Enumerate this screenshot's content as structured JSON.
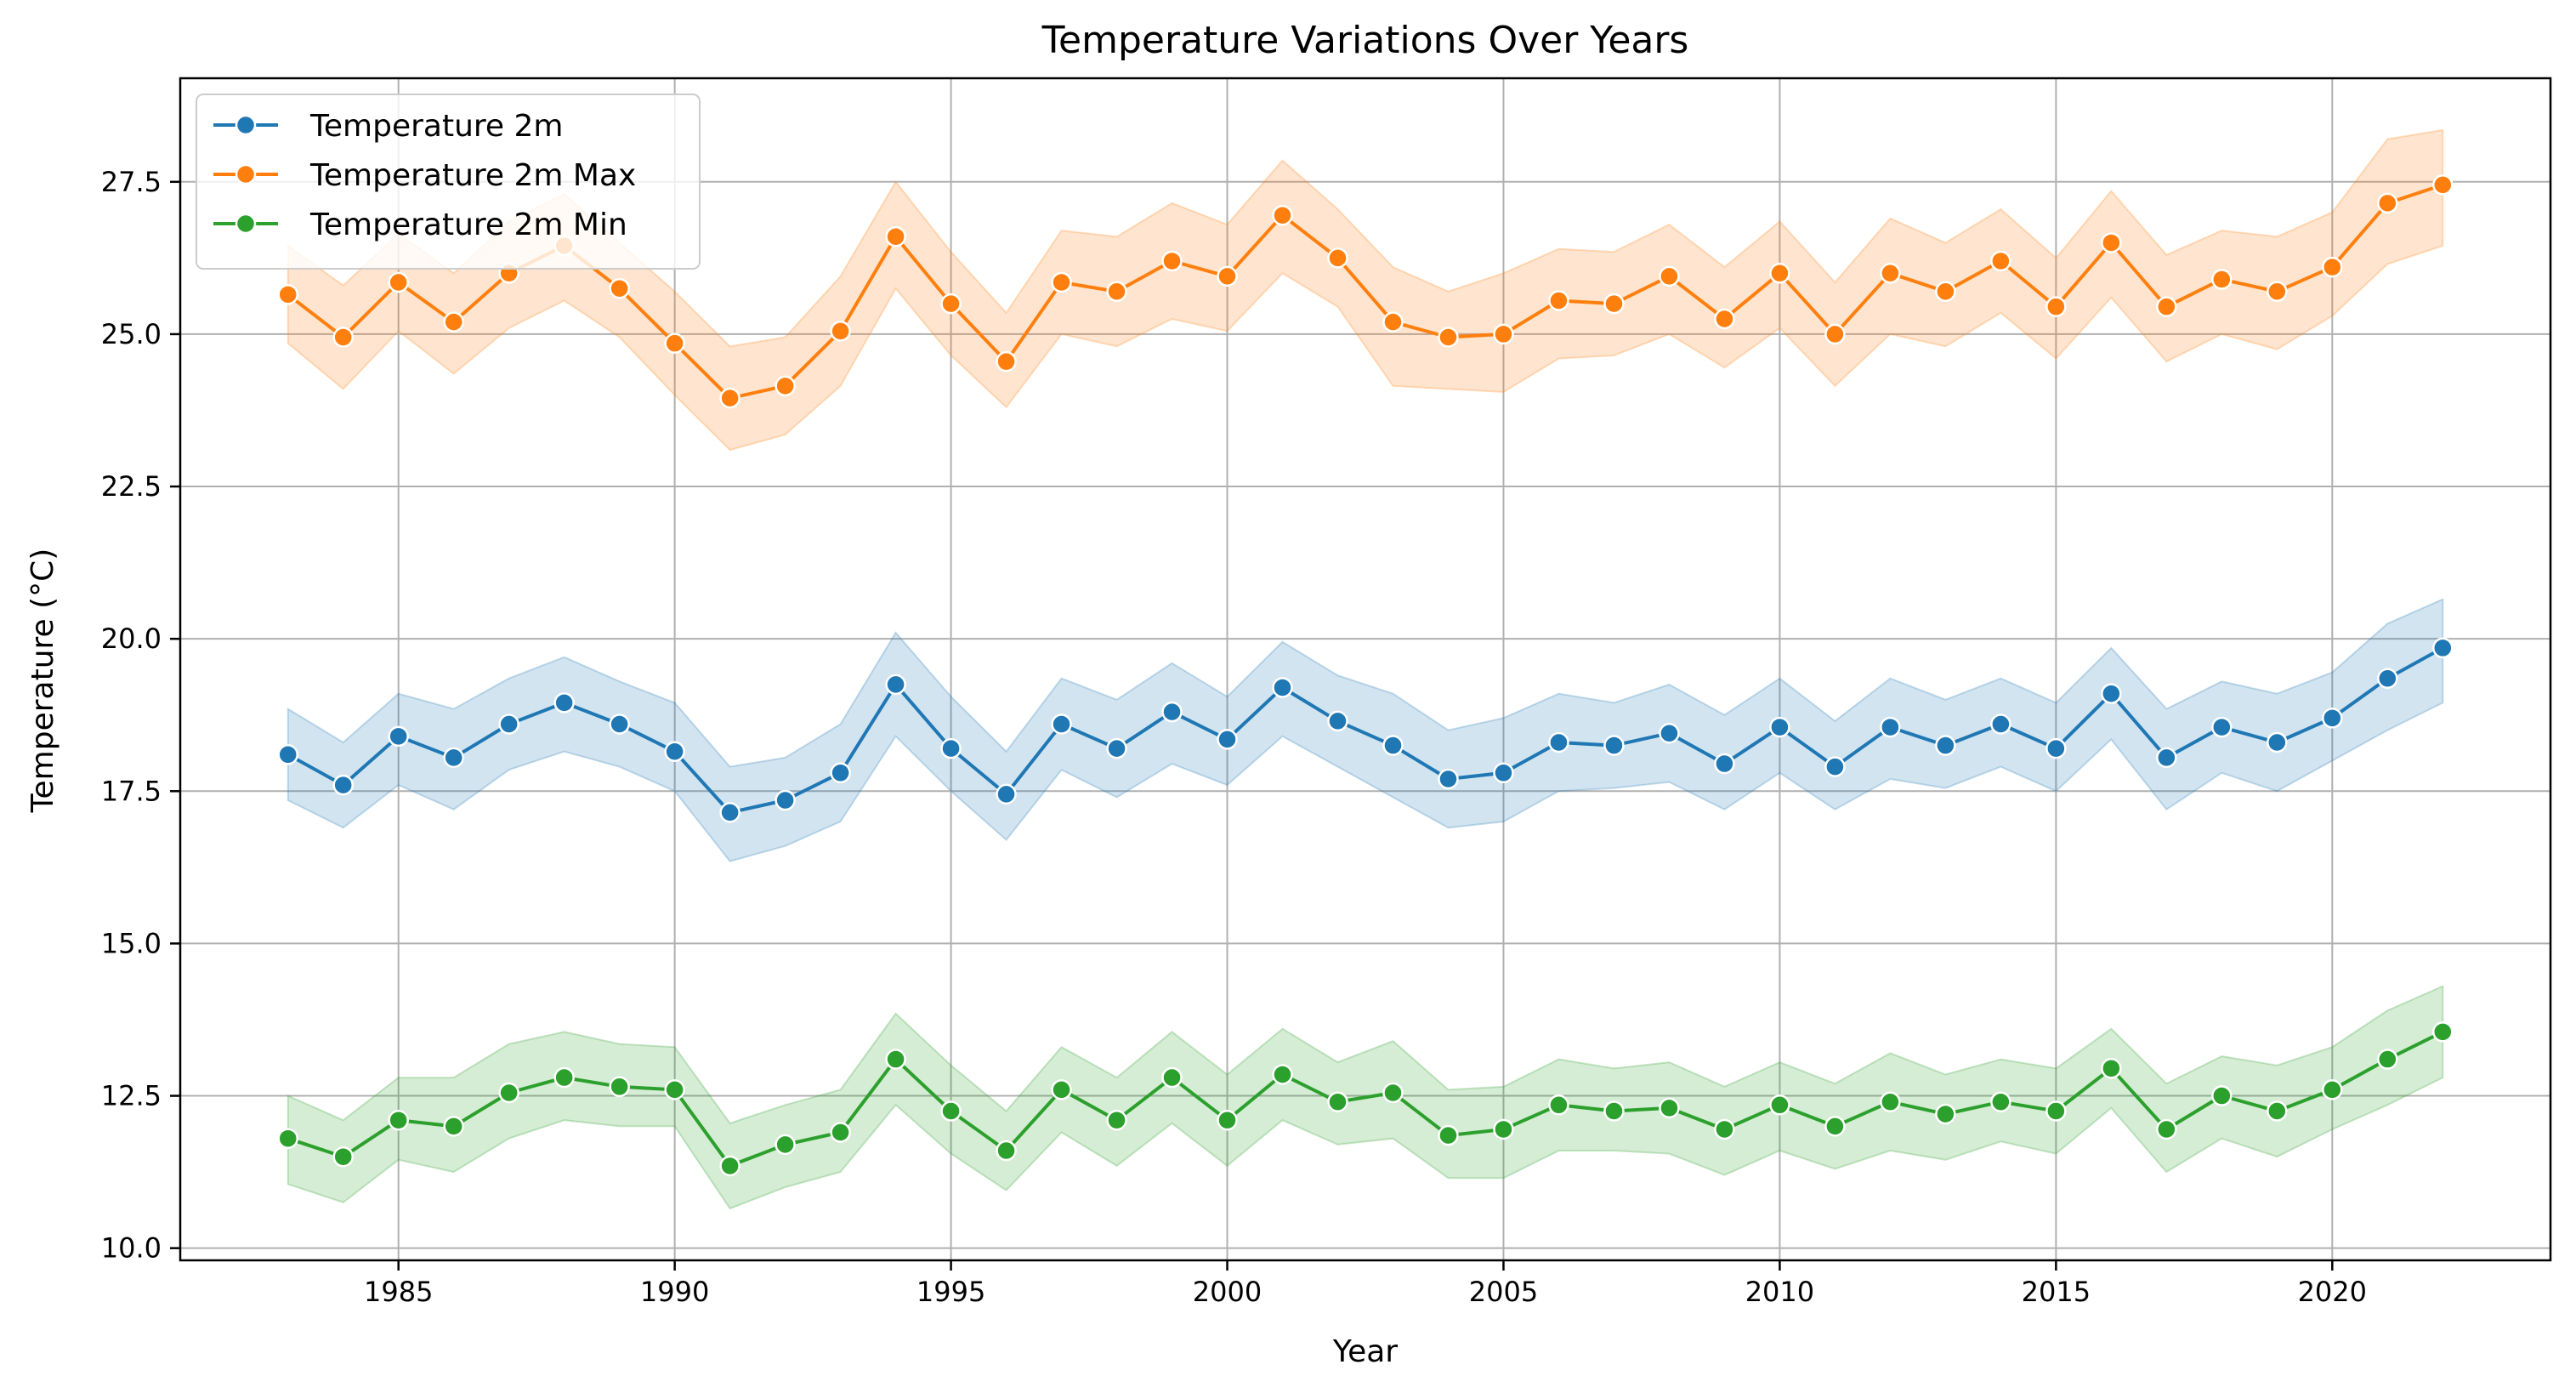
{
  "chart_data": {
    "type": "line",
    "title": "Temperature Variations Over Years",
    "xlabel": "Year",
    "ylabel": "Temperature (°C)",
    "xlim": [
      1981.05,
      2023.95
    ],
    "ylim": [
      9.8,
      29.2
    ],
    "xticks": [
      1985,
      1990,
      1995,
      2000,
      2005,
      2010,
      2015,
      2020
    ],
    "yticks": [
      10.0,
      12.5,
      15.0,
      17.5,
      20.0,
      22.5,
      25.0,
      27.5
    ],
    "grid": true,
    "legend_position": "top-left",
    "x": [
      1983,
      1984,
      1985,
      1986,
      1987,
      1988,
      1989,
      1990,
      1991,
      1992,
      1993,
      1994,
      1995,
      1996,
      1997,
      1998,
      1999,
      2000,
      2001,
      2002,
      2003,
      2004,
      2005,
      2006,
      2007,
      2008,
      2009,
      2010,
      2011,
      2012,
      2013,
      2014,
      2015,
      2016,
      2017,
      2018,
      2019,
      2020,
      2021,
      2022
    ],
    "series": [
      {
        "name": "Temperature 2m",
        "color": "#1f77b4",
        "values": [
          18.1,
          17.6,
          18.4,
          18.05,
          18.6,
          18.95,
          18.6,
          18.15,
          17.15,
          17.35,
          17.8,
          19.25,
          18.2,
          17.45,
          18.6,
          18.2,
          18.8,
          18.35,
          19.2,
          18.65,
          18.25,
          17.7,
          17.8,
          18.3,
          18.25,
          18.45,
          17.95,
          18.55,
          17.9,
          18.55,
          18.25,
          18.6,
          18.2,
          19.1,
          18.05,
          18.55,
          18.3,
          18.7,
          19.35,
          19.85
        ],
        "band_low": [
          17.35,
          16.9,
          17.6,
          17.2,
          17.85,
          18.15,
          17.9,
          17.5,
          16.35,
          16.6,
          17.0,
          18.4,
          17.5,
          16.7,
          17.85,
          17.4,
          17.95,
          17.6,
          18.4,
          17.9,
          17.4,
          16.9,
          17.0,
          17.5,
          17.55,
          17.65,
          17.2,
          17.8,
          17.2,
          17.7,
          17.55,
          17.9,
          17.5,
          18.35,
          17.2,
          17.8,
          17.5,
          18.0,
          18.5,
          18.95
        ],
        "band_high": [
          18.85,
          18.3,
          19.1,
          18.85,
          19.35,
          19.7,
          19.3,
          18.95,
          17.9,
          18.05,
          18.6,
          20.1,
          19.05,
          18.15,
          19.35,
          19.0,
          19.6,
          19.05,
          19.95,
          19.4,
          19.1,
          18.5,
          18.7,
          19.1,
          18.95,
          19.25,
          18.75,
          19.35,
          18.65,
          19.35,
          19.0,
          19.35,
          18.95,
          19.85,
          18.85,
          19.3,
          19.1,
          19.45,
          20.25,
          20.65
        ]
      },
      {
        "name": "Temperature 2m Max",
        "color": "#ff7f0e",
        "values": [
          25.65,
          24.95,
          25.85,
          25.2,
          26.0,
          26.45,
          25.75,
          24.85,
          23.95,
          24.15,
          25.05,
          26.6,
          25.5,
          24.55,
          25.85,
          25.7,
          26.2,
          25.95,
          26.95,
          26.25,
          25.2,
          24.95,
          25.0,
          25.55,
          25.5,
          25.95,
          25.25,
          26.0,
          25.0,
          26.0,
          25.7,
          26.2,
          25.45,
          26.5,
          25.45,
          25.9,
          25.7,
          26.1,
          27.15,
          27.45
        ],
        "band_low": [
          24.85,
          24.1,
          25.05,
          24.35,
          25.1,
          25.55,
          24.95,
          24.0,
          23.1,
          23.35,
          24.15,
          25.75,
          24.65,
          23.8,
          25.0,
          24.8,
          25.25,
          25.05,
          26.0,
          25.45,
          24.15,
          24.1,
          24.05,
          24.6,
          24.65,
          25.0,
          24.45,
          25.1,
          24.15,
          25.0,
          24.8,
          25.35,
          24.6,
          25.6,
          24.55,
          25.0,
          24.75,
          25.3,
          26.15,
          26.45
        ],
        "band_high": [
          26.45,
          25.8,
          26.65,
          26.0,
          26.85,
          27.3,
          26.5,
          25.7,
          24.8,
          24.95,
          25.95,
          27.5,
          26.35,
          25.35,
          26.7,
          26.6,
          27.15,
          26.8,
          27.85,
          27.05,
          26.1,
          25.7,
          26.0,
          26.4,
          26.35,
          26.8,
          26.1,
          26.85,
          25.85,
          26.9,
          26.5,
          27.05,
          26.25,
          27.35,
          26.3,
          26.7,
          26.6,
          27.0,
          28.2,
          28.35
        ]
      },
      {
        "name": "Temperature 2m Min",
        "color": "#2ca02c",
        "values": [
          11.8,
          11.5,
          12.1,
          12.0,
          12.55,
          12.8,
          12.65,
          12.6,
          11.35,
          11.7,
          11.9,
          13.1,
          12.25,
          11.6,
          12.6,
          12.1,
          12.8,
          12.1,
          12.85,
          12.4,
          12.55,
          11.85,
          11.95,
          12.35,
          12.25,
          12.3,
          11.95,
          12.35,
          12.0,
          12.4,
          12.2,
          12.4,
          12.25,
          12.95,
          11.95,
          12.5,
          12.25,
          12.6,
          13.1,
          13.55
        ],
        "band_low": [
          11.05,
          10.75,
          11.45,
          11.25,
          11.8,
          12.1,
          12.0,
          12.0,
          10.65,
          11.0,
          11.25,
          12.35,
          11.55,
          10.95,
          11.9,
          11.35,
          12.05,
          11.35,
          12.1,
          11.7,
          11.8,
          11.15,
          11.15,
          11.6,
          11.6,
          11.55,
          11.2,
          11.6,
          11.3,
          11.6,
          11.45,
          11.75,
          11.55,
          12.3,
          11.25,
          11.8,
          11.5,
          11.95,
          12.35,
          12.8
        ],
        "band_high": [
          12.5,
          12.1,
          12.8,
          12.8,
          13.35,
          13.55,
          13.35,
          13.3,
          12.05,
          12.35,
          12.6,
          13.85,
          13.0,
          12.25,
          13.3,
          12.8,
          13.55,
          12.85,
          13.6,
          13.05,
          13.4,
          12.6,
          12.65,
          13.1,
          12.95,
          13.05,
          12.65,
          13.05,
          12.7,
          13.2,
          12.85,
          13.1,
          12.95,
          13.6,
          12.7,
          13.15,
          13.0,
          13.3,
          13.9,
          14.3
        ]
      }
    ]
  }
}
